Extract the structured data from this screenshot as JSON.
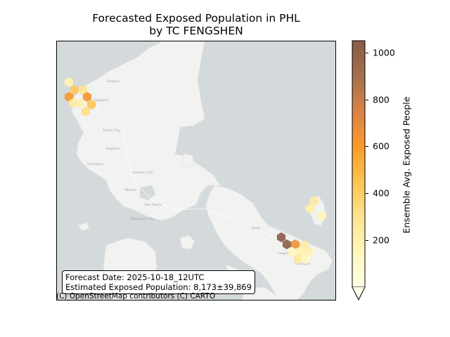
{
  "title": {
    "line1": "Forecasted Exposed Population in PHL",
    "line2": "by TC FENGSHEN"
  },
  "map": {
    "water_color": "#d4d9dc",
    "land_color": "#f2f2f0",
    "place_labels": [
      "Dagupan",
      "Baguio",
      "Tarlac City",
      "Angeles",
      "Olongapo",
      "Quezon City",
      "Manila",
      "San Pablo",
      "Batangas City",
      "Naga",
      "Legazpi",
      "Sorsogon"
    ],
    "hexes": [
      {
        "value": 180
      },
      {
        "value": 420
      },
      {
        "value": 300
      },
      {
        "value": 620
      },
      {
        "value": 250
      },
      {
        "value": 640
      },
      {
        "value": 200
      },
      {
        "value": 450
      },
      {
        "value": 330
      },
      {
        "value": 260
      },
      {
        "value": 220
      },
      {
        "value": 160
      },
      {
        "value": 1050
      },
      {
        "value": 1030
      },
      {
        "value": 650
      },
      {
        "value": 240
      },
      {
        "value": 180
      },
      {
        "value": 200
      },
      {
        "value": 150
      },
      {
        "value": 260
      },
      {
        "value": 140
      }
    ]
  },
  "info": {
    "forecast_date": "Forecast Date: 2025-10-18_12UTC",
    "exposed_population": "Estimated Exposed Population: 8,173±39,869"
  },
  "attribution": "(C) OpenStreetMap contributors (C) CARTO",
  "colorbar": {
    "label": "Ensemble Avg. Exposed People",
    "vmin": 0,
    "vmax": 1050,
    "ticks": [
      200,
      400,
      600,
      800,
      1000
    ],
    "tick_labels": [
      "200",
      "400",
      "600",
      "800",
      "1000"
    ],
    "colors": [
      "#ffffe5",
      "#fff7bc",
      "#fee391",
      "#fec44f",
      "#fb9a29",
      "#d98346",
      "#a4704d",
      "#8a5a44"
    ]
  }
}
